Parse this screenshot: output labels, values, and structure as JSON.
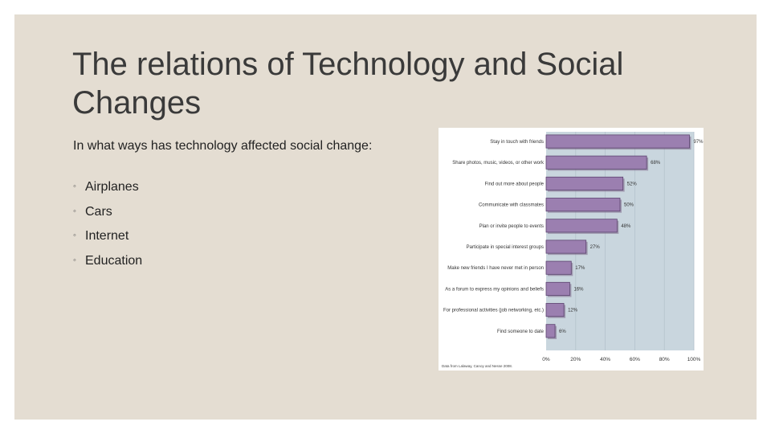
{
  "slide": {
    "title": "The relations of Technology and Social Changes",
    "intro": "In what ways has technology affected social change:",
    "bullet_marker": "◦",
    "bullets": [
      "Airplanes",
      "Cars",
      "Internet",
      "Education"
    ]
  },
  "chart_data": {
    "type": "bar",
    "orientation": "horizontal",
    "categories": [
      "Stay in touch with friends",
      "Share photos, music, videos, or other work",
      "Find out more about people",
      "Communicate with classmates",
      "Plan or invite people to events",
      "Participate in special interest groups",
      "Make new friends I have never met in person",
      "As a forum to express my opinions and beliefs",
      "For professional activities (job networking, etc.)",
      "Find someone to date"
    ],
    "values": [
      97,
      68,
      52,
      50,
      48,
      27,
      17,
      16,
      12,
      6
    ],
    "value_labels": [
      "97%",
      "68%",
      "52%",
      "50%",
      "48%",
      "27%",
      "17%",
      "16%",
      "12%",
      "6%"
    ],
    "xlim": [
      0,
      100
    ],
    "xticks": [
      "0%",
      "20%",
      "40%",
      "60%",
      "80%",
      "100%"
    ],
    "grid": true,
    "source": "Data from Lalaway, Canoy and Nesse 2008.",
    "colors": {
      "bar": "#9b7fb0",
      "bar_edge": "#5c4470",
      "plot_bg": "#c9d6de",
      "grid": "#b4c2cc"
    }
  }
}
